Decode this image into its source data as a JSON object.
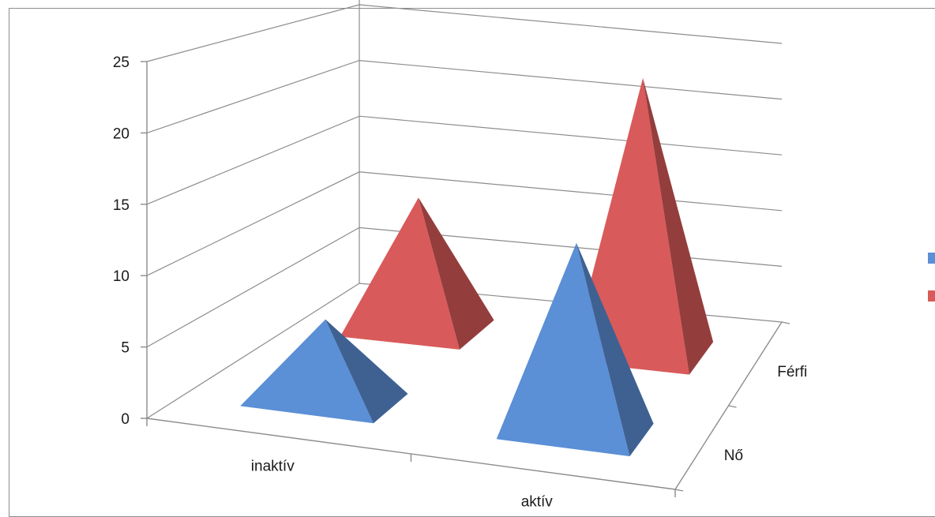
{
  "chart_data": {
    "type": "3d-pyramid",
    "title": "",
    "categories": [
      "inaktív",
      "aktív"
    ],
    "depth_categories": [
      "Nő",
      "Férfi"
    ],
    "series": [
      {
        "name": "Nő",
        "values": [
          6,
          14
        ],
        "color": "#5b8fd6"
      },
      {
        "name": "Férfi",
        "values": [
          11,
          23
        ],
        "color": "#d95a5a"
      }
    ],
    "yticks": [
      0,
      5,
      10,
      15,
      20,
      25
    ],
    "ylim": [
      0,
      25
    ],
    "grid": true,
    "legend": "right"
  }
}
